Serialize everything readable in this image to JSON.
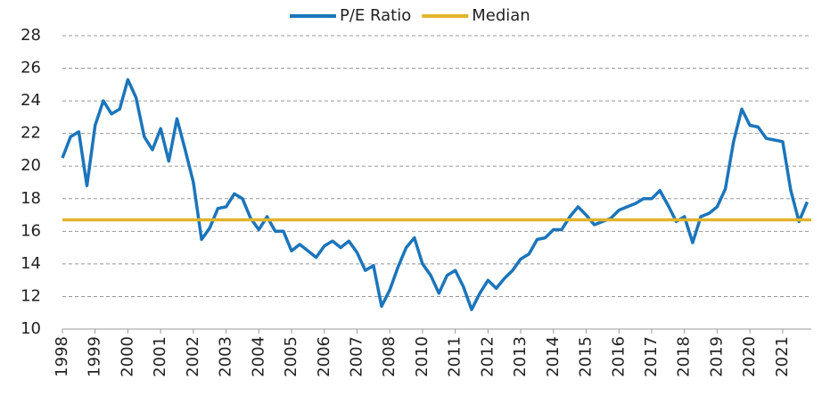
{
  "chart_data": {
    "type": "line",
    "categories": [
      "1998",
      null,
      null,
      null,
      "1999",
      null,
      null,
      null,
      "2000",
      null,
      null,
      null,
      "2001",
      null,
      null,
      null,
      "2002",
      null,
      null,
      null,
      "2003",
      null,
      null,
      null,
      "2004",
      null,
      null,
      null,
      "2005",
      null,
      null,
      null,
      "2006",
      null,
      null,
      null,
      "2007",
      null,
      null,
      null,
      "2008",
      null,
      null,
      null,
      "2010",
      null,
      null,
      null,
      "2011",
      null,
      null,
      null,
      "2012",
      null,
      null,
      null,
      "2013",
      null,
      null,
      null,
      "2014",
      null,
      null,
      null,
      "2015",
      null,
      null,
      null,
      "2016",
      null,
      null,
      null,
      "2017",
      null,
      null,
      null,
      "2018",
      null,
      null,
      null,
      "2019",
      null,
      null,
      null,
      "2020",
      null,
      null,
      null,
      "2021",
      null,
      null,
      null
    ],
    "series": [
      {
        "name": "P/E Ratio",
        "color": "#1b75bb",
        "values": [
          20.5,
          21.8,
          22.1,
          18.8,
          22.5,
          24,
          23.2,
          23.5,
          25.3,
          24.2,
          21.8,
          21,
          22.3,
          20.3,
          22.9,
          21,
          19,
          15.5,
          16.2,
          17.4,
          17.5,
          18.3,
          18,
          16.8,
          16.1,
          16.9,
          16,
          16,
          14.8,
          15.2,
          14.8,
          14.4,
          15.1,
          15.4,
          15,
          15.4,
          14.7,
          13.6,
          13.9,
          11.4,
          12.4,
          13.8,
          15,
          15.6,
          14,
          13.3,
          12.2,
          13.3,
          13.6,
          12.6,
          11.2,
          12.2,
          13,
          12.5,
          13.1,
          13.6,
          14.3,
          14.6,
          15.5,
          15.6,
          16.1,
          16.1,
          16.9,
          17.5,
          17,
          16.4,
          16.6,
          16.8,
          17.3,
          17.5,
          17.7,
          18,
          18,
          18.5,
          17.6,
          16.6,
          16.9,
          15.3,
          16.9,
          17.1,
          17.5,
          18.6,
          21.5,
          23.5,
          22.5,
          22.4,
          21.7,
          21.6,
          21.5,
          18.5,
          16.6,
          17.8
        ]
      }
    ],
    "reference_lines": [
      {
        "name": "Median",
        "color": "#e3b32a",
        "value": 16.7
      }
    ],
    "ylim": [
      10,
      28
    ],
    "yticks": [
      10,
      12,
      14,
      16,
      18,
      20,
      22,
      24,
      26,
      28
    ],
    "grid": true,
    "legend": "top"
  }
}
